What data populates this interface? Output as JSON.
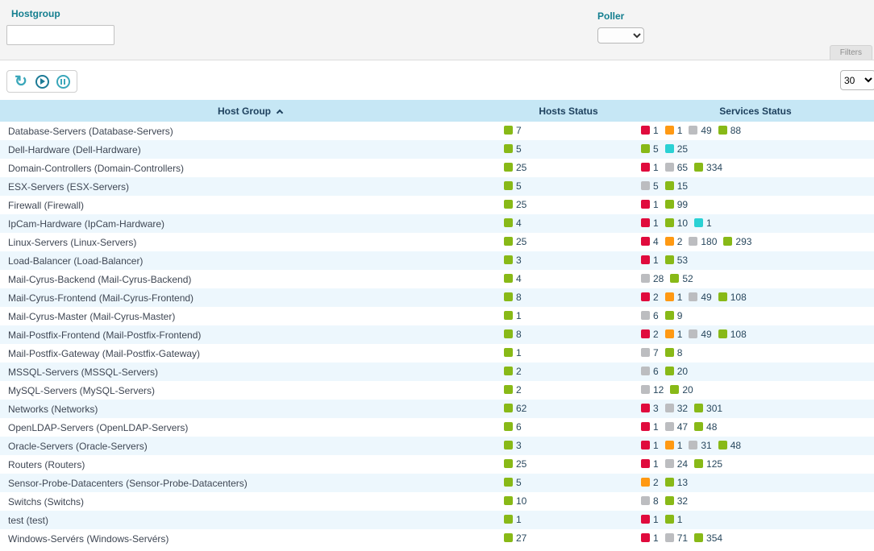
{
  "filters": {
    "hostgroup_label": "Hostgroup",
    "hostgroup_value": "",
    "poller_label": "Poller",
    "poller_value": "",
    "filters_tab_label": "Filters"
  },
  "toolbar": {
    "page_size": "30"
  },
  "colors": {
    "ok": "#88b917",
    "critical": "#e00b3d",
    "warning": "#ff9913",
    "unknown": "#bcbdc0",
    "pending": "#2ad1d4"
  },
  "table": {
    "columns": [
      "Host Group",
      "Hosts Status",
      "Services Status"
    ],
    "rows": [
      {
        "name": "Database-Servers (Database-Servers)",
        "hosts": [
          {
            "status": "ok",
            "count": 7
          }
        ],
        "services": [
          {
            "status": "critical",
            "count": 1
          },
          {
            "status": "warning",
            "count": 1
          },
          {
            "status": "unknown",
            "count": 49
          },
          {
            "status": "ok",
            "count": 88
          }
        ]
      },
      {
        "name": "Dell-Hardware (Dell-Hardware)",
        "hosts": [
          {
            "status": "ok",
            "count": 5
          }
        ],
        "services": [
          {
            "status": "ok",
            "count": 5
          },
          {
            "status": "pending",
            "count": 25
          }
        ]
      },
      {
        "name": "Domain-Controllers (Domain-Controllers)",
        "hosts": [
          {
            "status": "ok",
            "count": 25
          }
        ],
        "services": [
          {
            "status": "critical",
            "count": 1
          },
          {
            "status": "unknown",
            "count": 65
          },
          {
            "status": "ok",
            "count": 334
          }
        ]
      },
      {
        "name": "ESX-Servers (ESX-Servers)",
        "hosts": [
          {
            "status": "ok",
            "count": 5
          }
        ],
        "services": [
          {
            "status": "unknown",
            "count": 5
          },
          {
            "status": "ok",
            "count": 15
          }
        ]
      },
      {
        "name": "Firewall (Firewall)",
        "hosts": [
          {
            "status": "ok",
            "count": 25
          }
        ],
        "services": [
          {
            "status": "critical",
            "count": 1
          },
          {
            "status": "ok",
            "count": 99
          }
        ]
      },
      {
        "name": "IpCam-Hardware (IpCam-Hardware)",
        "hosts": [
          {
            "status": "ok",
            "count": 4
          }
        ],
        "services": [
          {
            "status": "critical",
            "count": 1
          },
          {
            "status": "ok",
            "count": 10
          },
          {
            "status": "pending",
            "count": 1
          }
        ]
      },
      {
        "name": "Linux-Servers (Linux-Servers)",
        "hosts": [
          {
            "status": "ok",
            "count": 25
          }
        ],
        "services": [
          {
            "status": "critical",
            "count": 4
          },
          {
            "status": "warning",
            "count": 2
          },
          {
            "status": "unknown",
            "count": 180
          },
          {
            "status": "ok",
            "count": 293
          }
        ]
      },
      {
        "name": "Load-Balancer (Load-Balancer)",
        "hosts": [
          {
            "status": "ok",
            "count": 3
          }
        ],
        "services": [
          {
            "status": "critical",
            "count": 1
          },
          {
            "status": "ok",
            "count": 53
          }
        ]
      },
      {
        "name": "Mail-Cyrus-Backend (Mail-Cyrus-Backend)",
        "hosts": [
          {
            "status": "ok",
            "count": 4
          }
        ],
        "services": [
          {
            "status": "unknown",
            "count": 28
          },
          {
            "status": "ok",
            "count": 52
          }
        ]
      },
      {
        "name": "Mail-Cyrus-Frontend (Mail-Cyrus-Frontend)",
        "hosts": [
          {
            "status": "ok",
            "count": 8
          }
        ],
        "services": [
          {
            "status": "critical",
            "count": 2
          },
          {
            "status": "warning",
            "count": 1
          },
          {
            "status": "unknown",
            "count": 49
          },
          {
            "status": "ok",
            "count": 108
          }
        ]
      },
      {
        "name": "Mail-Cyrus-Master (Mail-Cyrus-Master)",
        "hosts": [
          {
            "status": "ok",
            "count": 1
          }
        ],
        "services": [
          {
            "status": "unknown",
            "count": 6
          },
          {
            "status": "ok",
            "count": 9
          }
        ]
      },
      {
        "name": "Mail-Postfix-Frontend (Mail-Postfix-Frontend)",
        "hosts": [
          {
            "status": "ok",
            "count": 8
          }
        ],
        "services": [
          {
            "status": "critical",
            "count": 2
          },
          {
            "status": "warning",
            "count": 1
          },
          {
            "status": "unknown",
            "count": 49
          },
          {
            "status": "ok",
            "count": 108
          }
        ]
      },
      {
        "name": "Mail-Postfix-Gateway (Mail-Postfix-Gateway)",
        "hosts": [
          {
            "status": "ok",
            "count": 1
          }
        ],
        "services": [
          {
            "status": "unknown",
            "count": 7
          },
          {
            "status": "ok",
            "count": 8
          }
        ]
      },
      {
        "name": "MSSQL-Servers (MSSQL-Servers)",
        "hosts": [
          {
            "status": "ok",
            "count": 2
          }
        ],
        "services": [
          {
            "status": "unknown",
            "count": 6
          },
          {
            "status": "ok",
            "count": 20
          }
        ]
      },
      {
        "name": "MySQL-Servers (MySQL-Servers)",
        "hosts": [
          {
            "status": "ok",
            "count": 2
          }
        ],
        "services": [
          {
            "status": "unknown",
            "count": 12
          },
          {
            "status": "ok",
            "count": 20
          }
        ]
      },
      {
        "name": "Networks (Networks)",
        "hosts": [
          {
            "status": "ok",
            "count": 62
          }
        ],
        "services": [
          {
            "status": "critical",
            "count": 3
          },
          {
            "status": "unknown",
            "count": 32
          },
          {
            "status": "ok",
            "count": 301
          }
        ]
      },
      {
        "name": "OpenLDAP-Servers (OpenLDAP-Servers)",
        "hosts": [
          {
            "status": "ok",
            "count": 6
          }
        ],
        "services": [
          {
            "status": "critical",
            "count": 1
          },
          {
            "status": "unknown",
            "count": 47
          },
          {
            "status": "ok",
            "count": 48
          }
        ]
      },
      {
        "name": "Oracle-Servers (Oracle-Servers)",
        "hosts": [
          {
            "status": "ok",
            "count": 3
          }
        ],
        "services": [
          {
            "status": "critical",
            "count": 1
          },
          {
            "status": "warning",
            "count": 1
          },
          {
            "status": "unknown",
            "count": 31
          },
          {
            "status": "ok",
            "count": 48
          }
        ]
      },
      {
        "name": "Routers (Routers)",
        "hosts": [
          {
            "status": "ok",
            "count": 25
          }
        ],
        "services": [
          {
            "status": "critical",
            "count": 1
          },
          {
            "status": "unknown",
            "count": 24
          },
          {
            "status": "ok",
            "count": 125
          }
        ]
      },
      {
        "name": "Sensor-Probe-Datacenters (Sensor-Probe-Datacenters)",
        "hosts": [
          {
            "status": "ok",
            "count": 5
          }
        ],
        "services": [
          {
            "status": "warning",
            "count": 2
          },
          {
            "status": "ok",
            "count": 13
          }
        ]
      },
      {
        "name": "Switchs (Switchs)",
        "hosts": [
          {
            "status": "ok",
            "count": 10
          }
        ],
        "services": [
          {
            "status": "unknown",
            "count": 8
          },
          {
            "status": "ok",
            "count": 32
          }
        ]
      },
      {
        "name": "test (test)",
        "hosts": [
          {
            "status": "ok",
            "count": 1
          }
        ],
        "services": [
          {
            "status": "critical",
            "count": 1
          },
          {
            "status": "ok",
            "count": 1
          }
        ]
      },
      {
        "name": "Windows-Servérs (Windows-Servérs)",
        "hosts": [
          {
            "status": "ok",
            "count": 27
          }
        ],
        "services": [
          {
            "status": "critical",
            "count": 1
          },
          {
            "status": "unknown",
            "count": 71
          },
          {
            "status": "ok",
            "count": 354
          }
        ]
      }
    ]
  }
}
